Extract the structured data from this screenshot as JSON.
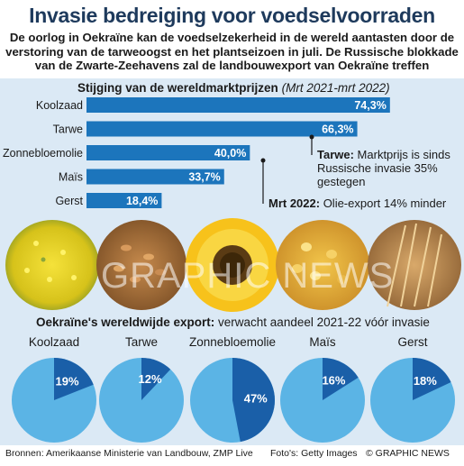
{
  "header": {
    "title": "Invasie bedreiging voor voedselvoorraden",
    "subtitle": "De oorlog in Oekraïne kan de voedselzekerheid in de wereld aantasten door de verstoring van de tarweoogst en het plantseizoen in juli. De Russische blokkade van de Zwarte-Zeehavens zal de landbouwexport van Oekraïne treffen"
  },
  "prices": {
    "title": "Stijging van de wereldmarktprijzen",
    "period": "(Mrt 2021-mrt 2022)"
  },
  "annotations": {
    "wheat_bold": "Tarwe:",
    "wheat_text": " Marktprijs is sinds Russische invasie 35% gestegen",
    "oil_bold": "Mrt 2022:",
    "oil_text": " Olie-export 14% minder"
  },
  "exports": {
    "title_bold": "Oekraïne's wereldwijde export:",
    "title_rest": " verwacht aandeel 2021-22 vóór invasie"
  },
  "photos": [
    "koolzaad-photo",
    "tarwe-photo",
    "zonnebloem-photo",
    "mais-photo",
    "gerst-photo"
  ],
  "watermark": "GRAPHIC NEWS",
  "footer": {
    "sources": "Bronnen: Amerikaanse Ministerie van Landbouw, ZMP Live",
    "photos": "Foto's: Getty Images",
    "credit": "© GRAPHIC NEWS"
  },
  "colors": {
    "bar": "#1c75bc",
    "pie_light": "#5bb4e5",
    "pie_dark": "#1a5fa8",
    "panel": "#dbe9f5",
    "title": "#1e3a5c"
  },
  "chart_data": [
    {
      "type": "bar",
      "orientation": "horizontal",
      "title": "Stijging van de wereldmarktprijzen",
      "subtitle": "(Mrt 2021-mrt 2022)",
      "categories": [
        "Koolzaad",
        "Tarwe",
        "Zonnebloemolie",
        "Maïs",
        "Gerst"
      ],
      "values": [
        74.3,
        66.3,
        40.0,
        33.7,
        18.4
      ],
      "labels": [
        "74,3%",
        "66,3%",
        "40,0%",
        "33,7%",
        "18,4%"
      ],
      "xlim": [
        0,
        75
      ]
    },
    {
      "type": "pie",
      "title": "Oekraïne's wereldwijde export",
      "categories": [
        "Koolzaad",
        "Tarwe",
        "Zonnebloemolie",
        "Maïs",
        "Gerst"
      ],
      "values": [
        19,
        12,
        47,
        16,
        18
      ],
      "labels": [
        "19%",
        "12%",
        "47%",
        "16%",
        "18%"
      ]
    }
  ]
}
